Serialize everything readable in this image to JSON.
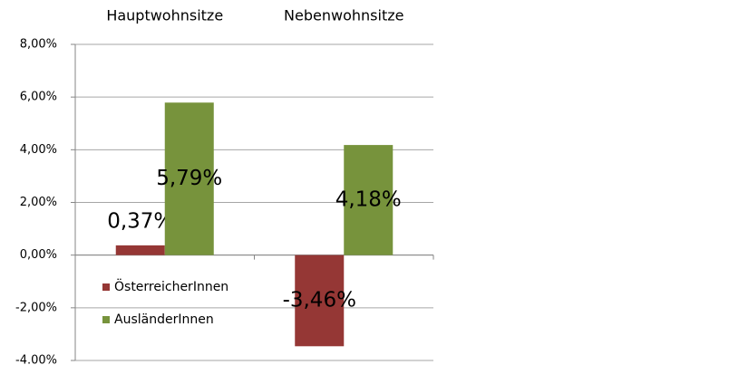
{
  "chart_data": {
    "type": "bar",
    "categories": [
      "Hauptwohnsitze",
      "Nebenwohnsitze"
    ],
    "series": [
      {
        "name": "ÖsterreicherInnen",
        "color": "#953735",
        "values": [
          0.37,
          -3.46
        ],
        "value_labels": [
          "0,37%",
          "-3,46%"
        ]
      },
      {
        "name": "AusländerInnen",
        "color": "#77933c",
        "values": [
          5.79,
          4.18
        ],
        "value_labels": [
          "5,79%",
          "4,18%"
        ]
      }
    ],
    "ylim": [
      -4,
      8
    ],
    "yticks": [
      {
        "value": -4,
        "label": "-4.00%"
      },
      {
        "value": -2,
        "label": "-2,00%"
      },
      {
        "value": 0,
        "label": "0,00%"
      },
      {
        "value": 2,
        "label": "2,00%"
      },
      {
        "value": 4,
        "label": "4,00%"
      },
      {
        "value": 6,
        "label": "6,00%"
      },
      {
        "value": 8,
        "label": "8,00%"
      }
    ],
    "grid": true,
    "legend": "bottom-left"
  }
}
